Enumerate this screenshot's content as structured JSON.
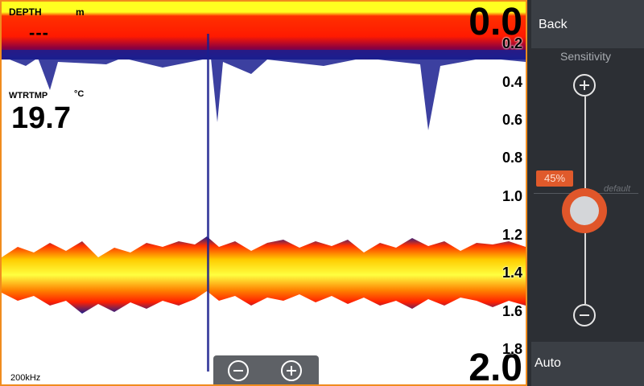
{
  "sonar": {
    "depth_label": "DEPTH",
    "depth_unit": "m",
    "depth_value": "---",
    "temp_label": "WTRTMP",
    "temp_unit": "°C",
    "temp_value": "19.7",
    "range_top": "0.0",
    "range_bottom": "2.0",
    "scale": [
      "0.2",
      "0.4",
      "0.6",
      "0.8",
      "1.0",
      "1.2",
      "1.4",
      "1.6",
      "1.8"
    ],
    "frequency": "200kHz",
    "colors": {
      "frame": "#f08c1e",
      "surface": "#ff1f00",
      "echo_hot": "#ffff00",
      "echo_mid": "#ff7a00",
      "echo_edge": "#1a1f8f"
    }
  },
  "zoom": {
    "out_icon": "minus-circle-icon",
    "in_icon": "plus-circle-icon"
  },
  "panel": {
    "back": "Back",
    "sensitivity_label": "Sensitivity",
    "sensitivity_value": "45%",
    "sensitivity_level": 0.45,
    "default_label": "default",
    "auto": "Auto"
  }
}
